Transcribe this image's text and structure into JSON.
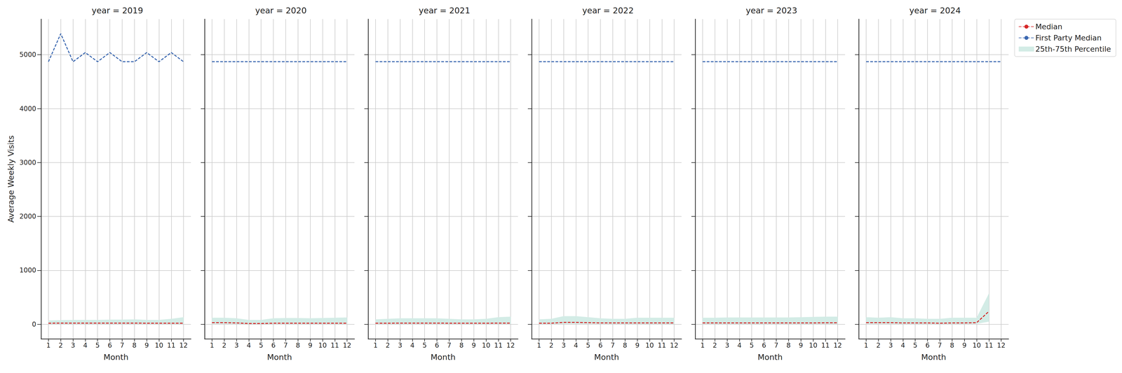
{
  "chart_data": [
    {
      "type": "line",
      "title": "year = 2019",
      "x_label": "Month",
      "y_label": "Average Weekly Visits",
      "x": [
        1,
        2,
        3,
        4,
        5,
        6,
        7,
        8,
        9,
        10,
        11,
        12
      ],
      "xlim": [
        0.4,
        12.6
      ],
      "xticks": [
        1,
        2,
        3,
        4,
        5,
        6,
        7,
        8,
        9,
        10,
        11,
        12
      ],
      "ylim": [
        -270,
        5660
      ],
      "yticks": [
        0,
        1000,
        2000,
        3000,
        4000,
        5000
      ],
      "grid": true,
      "marker": "none",
      "line_style": "dashed",
      "series": [
        {
          "name": "Median",
          "color": "#d62728",
          "values": [
            20,
            22,
            22,
            22,
            22,
            22,
            22,
            22,
            20,
            20,
            20,
            20
          ]
        },
        {
          "name": "First Party Median",
          "color": "#3a67b0",
          "values": [
            4870,
            5390,
            4870,
            5040,
            4870,
            5040,
            4870,
            4870,
            5040,
            4870,
            5040,
            4870
          ]
        },
        {
          "name": "25th-75th Percentile",
          "type": "band",
          "color": "#d3ece6",
          "lower": [
            8,
            8,
            8,
            8,
            8,
            8,
            8,
            8,
            8,
            8,
            8,
            8
          ],
          "upper": [
            70,
            75,
            80,
            80,
            80,
            85,
            85,
            90,
            80,
            80,
            100,
            130
          ]
        }
      ]
    },
    {
      "type": "line",
      "title": "year = 2020",
      "x_label": "Month",
      "tick_labels": "x",
      "x": [
        1,
        2,
        3,
        4,
        5,
        6,
        7,
        8,
        9,
        10,
        11,
        12
      ],
      "xlim": [
        0.4,
        12.6
      ],
      "xticks": [
        1,
        2,
        3,
        4,
        5,
        6,
        7,
        8,
        9,
        10,
        11,
        12
      ],
      "ylim": [
        -270,
        5660
      ],
      "yticks": [
        0,
        1000,
        2000,
        3000,
        4000,
        5000
      ],
      "grid": true,
      "marker": "none",
      "line_style": "dashed",
      "series": [
        {
          "name": "Median",
          "color": "#d62728",
          "values": [
            30,
            30,
            25,
            15,
            15,
            20,
            20,
            20,
            20,
            20,
            20,
            20
          ]
        },
        {
          "name": "First Party Median",
          "color": "#3a67b0",
          "values": [
            4870,
            4870,
            4870,
            4870,
            4870,
            4870,
            4870,
            4870,
            4870,
            4870,
            4870,
            4870
          ]
        },
        {
          "name": "25th-75th Percentile",
          "type": "band",
          "color": "#d3ece6",
          "lower": [
            10,
            10,
            8,
            5,
            5,
            8,
            8,
            8,
            8,
            8,
            8,
            8
          ],
          "upper": [
            120,
            120,
            110,
            80,
            80,
            110,
            115,
            115,
            110,
            115,
            120,
            125
          ]
        }
      ]
    },
    {
      "type": "line",
      "title": "year = 2021",
      "x_label": "Month",
      "tick_labels": "x",
      "x": [
        1,
        2,
        3,
        4,
        5,
        6,
        7,
        8,
        9,
        10,
        11,
        12
      ],
      "xlim": [
        0.4,
        12.6
      ],
      "xticks": [
        1,
        2,
        3,
        4,
        5,
        6,
        7,
        8,
        9,
        10,
        11,
        12
      ],
      "ylim": [
        -270,
        5660
      ],
      "yticks": [
        0,
        1000,
        2000,
        3000,
        4000,
        5000
      ],
      "grid": true,
      "marker": "none",
      "line_style": "dashed",
      "series": [
        {
          "name": "Median",
          "color": "#d62728",
          "values": [
            20,
            20,
            22,
            22,
            22,
            22,
            20,
            20,
            20,
            20,
            22,
            22
          ]
        },
        {
          "name": "First Party Median",
          "color": "#3a67b0",
          "values": [
            4870,
            4870,
            4870,
            4870,
            4870,
            4870,
            4870,
            4870,
            4870,
            4870,
            4870,
            4870
          ]
        },
        {
          "name": "25th-75th Percentile",
          "type": "band",
          "color": "#d3ece6",
          "lower": [
            8,
            8,
            8,
            8,
            8,
            8,
            8,
            8,
            8,
            8,
            8,
            8
          ],
          "upper": [
            90,
            100,
            110,
            110,
            110,
            110,
            100,
            90,
            90,
            100,
            130,
            140
          ]
        }
      ]
    },
    {
      "type": "line",
      "title": "year = 2022",
      "x_label": "Month",
      "tick_labels": "x",
      "x": [
        1,
        2,
        3,
        4,
        5,
        6,
        7,
        8,
        9,
        10,
        11,
        12
      ],
      "xlim": [
        0.4,
        12.6
      ],
      "xticks": [
        1,
        2,
        3,
        4,
        5,
        6,
        7,
        8,
        9,
        10,
        11,
        12
      ],
      "ylim": [
        -270,
        5660
      ],
      "yticks": [
        0,
        1000,
        2000,
        3000,
        4000,
        5000
      ],
      "grid": true,
      "marker": "none",
      "line_style": "dashed",
      "series": [
        {
          "name": "Median",
          "color": "#d62728",
          "values": [
            20,
            20,
            35,
            35,
            30,
            25,
            25,
            25,
            25,
            25,
            25,
            25
          ]
        },
        {
          "name": "First Party Median",
          "color": "#3a67b0",
          "values": [
            4870,
            4870,
            4870,
            4870,
            4870,
            4870,
            4870,
            4870,
            4870,
            4870,
            4870,
            4870
          ]
        },
        {
          "name": "25th-75th Percentile",
          "type": "band",
          "color": "#d3ece6",
          "lower": [
            8,
            8,
            10,
            10,
            10,
            10,
            8,
            8,
            8,
            8,
            8,
            8
          ],
          "upper": [
            90,
            100,
            150,
            150,
            130,
            110,
            100,
            100,
            120,
            120,
            120,
            120
          ]
        }
      ]
    },
    {
      "type": "line",
      "title": "year = 2023",
      "x_label": "Month",
      "tick_labels": "x",
      "x": [
        1,
        2,
        3,
        4,
        5,
        6,
        7,
        8,
        9,
        10,
        11,
        12
      ],
      "xlim": [
        0.4,
        12.6
      ],
      "xticks": [
        1,
        2,
        3,
        4,
        5,
        6,
        7,
        8,
        9,
        10,
        11,
        12
      ],
      "ylim": [
        -270,
        5660
      ],
      "yticks": [
        0,
        1000,
        2000,
        3000,
        4000,
        5000
      ],
      "grid": true,
      "marker": "none",
      "line_style": "dashed",
      "series": [
        {
          "name": "Median",
          "color": "#d62728",
          "values": [
            25,
            25,
            25,
            25,
            25,
            25,
            25,
            25,
            25,
            25,
            28,
            28
          ]
        },
        {
          "name": "First Party Median",
          "color": "#3a67b0",
          "values": [
            4870,
            4870,
            4870,
            4870,
            4870,
            4870,
            4870,
            4870,
            4870,
            4870,
            4870,
            4870
          ]
        },
        {
          "name": "25th-75th Percentile",
          "type": "band",
          "color": "#d3ece6",
          "lower": [
            8,
            8,
            8,
            8,
            8,
            8,
            8,
            8,
            8,
            8,
            8,
            8
          ],
          "upper": [
            120,
            120,
            125,
            125,
            125,
            125,
            125,
            125,
            130,
            135,
            140,
            140
          ]
        }
      ]
    },
    {
      "type": "line",
      "title": "year = 2024",
      "x_label": "Month",
      "tick_labels": "x",
      "legend": "upper right",
      "x": [
        1,
        2,
        3,
        4,
        5,
        6,
        7,
        8,
        9,
        10,
        11,
        12
      ],
      "xlim": [
        0.4,
        12.6
      ],
      "xticks": [
        1,
        2,
        3,
        4,
        5,
        6,
        7,
        8,
        9,
        10,
        11,
        12
      ],
      "ylim": [
        -270,
        5660
      ],
      "yticks": [
        0,
        1000,
        2000,
        3000,
        4000,
        5000
      ],
      "grid": true,
      "marker": "none",
      "line_style": "dashed",
      "series": [
        {
          "name": "Median",
          "color": "#d62728",
          "values": [
            30,
            30,
            30,
            25,
            25,
            25,
            20,
            25,
            25,
            30,
            240,
            null
          ]
        },
        {
          "name": "First Party Median",
          "color": "#3a67b0",
          "values": [
            4870,
            4870,
            4870,
            4870,
            4870,
            4870,
            4870,
            4870,
            4870,
            4870,
            4870,
            4870
          ]
        },
        {
          "name": "25th-75th Percentile",
          "type": "band",
          "color": "#d3ece6",
          "lower": [
            10,
            10,
            10,
            8,
            8,
            8,
            8,
            8,
            8,
            10,
            50,
            null
          ],
          "upper": [
            130,
            120,
            130,
            110,
            110,
            100,
            100,
            120,
            120,
            120,
            570,
            null
          ]
        }
      ]
    }
  ]
}
